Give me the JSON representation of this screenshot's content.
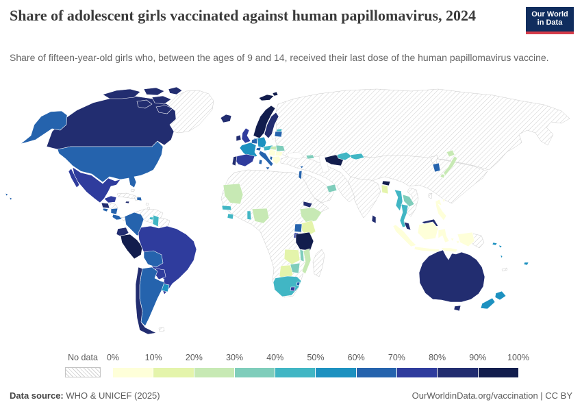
{
  "header": {
    "title": "Share of adolescent girls vaccinated against human papillomavirus, 2024",
    "subtitle": "Share of fifteen-year-old girls who, between the ages of 9 and 14, received their last dose of the human papillomavirus vaccine."
  },
  "logo": {
    "line1": "Our World",
    "line2": "in Data",
    "bg_color": "#102d5e",
    "accent_color": "#d63c4a"
  },
  "legend": {
    "no_data_label": "No data",
    "no_data_pattern_color": "#cfcfcf",
    "ticks": [
      "0%",
      "10%",
      "20%",
      "30%",
      "40%",
      "50%",
      "60%",
      "70%",
      "80%",
      "90%",
      "100%"
    ],
    "bins": [
      {
        "range": "0-10%",
        "color": "#feffd9"
      },
      {
        "range": "10-20%",
        "color": "#e4f4ab"
      },
      {
        "range": "20-30%",
        "color": "#c7e9b4"
      },
      {
        "range": "30-40%",
        "color": "#7fcdbb"
      },
      {
        "range": "40-50%",
        "color": "#41b6c4"
      },
      {
        "range": "50-60%",
        "color": "#1d91c0"
      },
      {
        "range": "60-70%",
        "color": "#2563ad"
      },
      {
        "range": "70-80%",
        "color": "#2f3c9d"
      },
      {
        "range": "80-90%",
        "color": "#222d70"
      },
      {
        "range": "90-100%",
        "color": "#121d4d"
      }
    ]
  },
  "footer": {
    "source_label": "Data source:",
    "source_text": " WHO & UNICEF (2025)",
    "link_text": "OurWorldinData.org/vaccination | CC BY"
  },
  "chart_data": {
    "type": "choropleth-map",
    "title": "Share of adolescent girls vaccinated against human papillomavirus, 2024",
    "unit": "%",
    "legend_bins": [
      "0-10",
      "10-20",
      "20-30",
      "30-40",
      "40-50",
      "50-60",
      "60-70",
      "70-80",
      "80-90",
      "90-100"
    ],
    "countries": [
      {
        "name": "Canada",
        "value": "80-90%",
        "bin": 8
      },
      {
        "name": "United States",
        "value": "60-70%",
        "bin": 6
      },
      {
        "name": "Mexico",
        "value": "70-80%",
        "bin": 7
      },
      {
        "name": "Guatemala",
        "value": "80-90%",
        "bin": 8
      },
      {
        "name": "El Salvador",
        "value": "60-70%",
        "bin": 6
      },
      {
        "name": "Nicaragua",
        "value": "60-70%",
        "bin": 6
      },
      {
        "name": "Costa Rica",
        "value": "60-70%",
        "bin": 6
      },
      {
        "name": "Jamaica",
        "value": "80-90%",
        "bin": 8
      },
      {
        "name": "Dominican Republic",
        "value": "60-70%",
        "bin": 6
      },
      {
        "name": "Trinidad and Tobago",
        "value": "40-50%",
        "bin": 4
      },
      {
        "name": "Colombia",
        "value": "60-70%",
        "bin": 6
      },
      {
        "name": "Ecuador",
        "value": "80-90%",
        "bin": 8
      },
      {
        "name": "Peru",
        "value": "90-100%",
        "bin": 9
      },
      {
        "name": "Brazil",
        "value": "70-80%",
        "bin": 7
      },
      {
        "name": "Bolivia",
        "value": "60-70%",
        "bin": 6
      },
      {
        "name": "Paraguay",
        "value": "70-80%",
        "bin": 7
      },
      {
        "name": "Uruguay",
        "value": "50-60%",
        "bin": 5
      },
      {
        "name": "Argentina",
        "value": "60-70%",
        "bin": 6
      },
      {
        "name": "Chile",
        "value": "80-90%",
        "bin": 8
      },
      {
        "name": "Guyana",
        "value": "40-50%",
        "bin": 4
      },
      {
        "name": "Iceland",
        "value": "80-90%",
        "bin": 8
      },
      {
        "name": "Norway",
        "value": "90-100%",
        "bin": 9
      },
      {
        "name": "Svalbard",
        "value": "90-100%",
        "bin": 9
      },
      {
        "name": "Sweden",
        "value": "80-90%",
        "bin": 8
      },
      {
        "name": "Denmark",
        "value": "60-70%",
        "bin": 6
      },
      {
        "name": "United Kingdom",
        "value": "70-80%",
        "bin": 7
      },
      {
        "name": "Ireland",
        "value": "80-90%",
        "bin": 8
      },
      {
        "name": "Netherlands",
        "value": "60-70%",
        "bin": 6
      },
      {
        "name": "Germany",
        "value": "50-60%",
        "bin": 5
      },
      {
        "name": "France",
        "value": "50-60%",
        "bin": 5
      },
      {
        "name": "Spain",
        "value": "70-80%",
        "bin": 7
      },
      {
        "name": "Portugal",
        "value": "80-90%",
        "bin": 8
      },
      {
        "name": "Italy",
        "value": "60-70%",
        "bin": 6
      },
      {
        "name": "Switzerland",
        "value": "60-70%",
        "bin": 6
      },
      {
        "name": "Austria",
        "value": "40-50%",
        "bin": 4
      },
      {
        "name": "Hungary",
        "value": "20-30%",
        "bin": 2
      },
      {
        "name": "Romania",
        "value": "30-40%",
        "bin": 3
      },
      {
        "name": "Serbia",
        "value": "0-10%",
        "bin": 0
      },
      {
        "name": "Bulgaria",
        "value": "0-10%",
        "bin": 0
      },
      {
        "name": "Greece",
        "value": "0-10%",
        "bin": 0
      },
      {
        "name": "Albania",
        "value": "60-70%",
        "bin": 6
      },
      {
        "name": "Estonia",
        "value": "40-50%",
        "bin": 4
      },
      {
        "name": "Latvia",
        "value": "60-70%",
        "bin": 6
      },
      {
        "name": "Georgia",
        "value": "30-40%",
        "bin": 3
      },
      {
        "name": "Turkmenistan",
        "value": "90-100%",
        "bin": 9
      },
      {
        "name": "Uzbekistan",
        "value": "40-50%",
        "bin": 4
      },
      {
        "name": "Kyrgyzstan",
        "value": "40-50%",
        "bin": 4
      },
      {
        "name": "Israel",
        "value": "60-70%",
        "bin": 6
      },
      {
        "name": "Cyprus",
        "value": "60-70%",
        "bin": 6
      },
      {
        "name": "United Arab Emirates",
        "value": "30-40%",
        "bin": 3
      },
      {
        "name": "Bhutan",
        "value": "90-100%",
        "bin": 9
      },
      {
        "name": "Bangladesh",
        "value": "10-20%",
        "bin": 1
      },
      {
        "name": "Sri Lanka",
        "value": "80-90%",
        "bin": 8
      },
      {
        "name": "Myanmar",
        "value": "40-50%",
        "bin": 4
      },
      {
        "name": "Laos",
        "value": "30-40%",
        "bin": 3
      },
      {
        "name": "Thailand",
        "value": "40-50%",
        "bin": 4
      },
      {
        "name": "Malaysia",
        "value": "80-90%",
        "bin": 8
      },
      {
        "name": "Indonesia",
        "value": "0-10%",
        "bin": 0
      },
      {
        "name": "Philippines",
        "value": "0-10%",
        "bin": 0
      },
      {
        "name": "Japan",
        "value": "20-30%",
        "bin": 2
      },
      {
        "name": "South Korea",
        "value": "60-70%",
        "bin": 6
      },
      {
        "name": "Mauritania",
        "value": "20-30%",
        "bin": 2
      },
      {
        "name": "Senegal",
        "value": "40-50%",
        "bin": 4
      },
      {
        "name": "Sierra Leone",
        "value": "40-50%",
        "bin": 4
      },
      {
        "name": "Benin",
        "value": "40-50%",
        "bin": 4
      },
      {
        "name": "Nigeria",
        "value": "20-30%",
        "bin": 2
      },
      {
        "name": "Eritrea",
        "value": "80-90%",
        "bin": 8
      },
      {
        "name": "Ethiopia",
        "value": "20-30%",
        "bin": 2
      },
      {
        "name": "Kenya",
        "value": "10-20%",
        "bin": 1
      },
      {
        "name": "Uganda",
        "value": "60-70%",
        "bin": 6
      },
      {
        "name": "Rwanda",
        "value": "70-80%",
        "bin": 7
      },
      {
        "name": "Tanzania",
        "value": "90-100%",
        "bin": 9
      },
      {
        "name": "Zambia",
        "value": "10-20%",
        "bin": 1
      },
      {
        "name": "Malawi",
        "value": "30-40%",
        "bin": 3
      },
      {
        "name": "Mozambique",
        "value": "20-30%",
        "bin": 2
      },
      {
        "name": "Zimbabwe",
        "value": "30-40%",
        "bin": 3
      },
      {
        "name": "Botswana",
        "value": "10-20%",
        "bin": 1
      },
      {
        "name": "South Africa",
        "value": "40-50%",
        "bin": 4
      },
      {
        "name": "Lesotho",
        "value": "70-80%",
        "bin": 7
      },
      {
        "name": "Eswatini",
        "value": "60-70%",
        "bin": 6
      },
      {
        "name": "Australia",
        "value": "80-90%",
        "bin": 8
      },
      {
        "name": "New Zealand",
        "value": "50-60%",
        "bin": 5
      },
      {
        "name": "Fiji",
        "value": "50-60%",
        "bin": 5
      },
      {
        "name": "Solomon Islands",
        "value": "50-60%",
        "bin": 5
      },
      {
        "name": "Vanuatu",
        "value": "50-60%",
        "bin": 5
      },
      {
        "name": "Hawaii (United States)",
        "value": "60-70%",
        "bin": 6
      }
    ],
    "no_data_countries": [
      "Russia",
      "China",
      "India",
      "Mongolia",
      "Kazakhstan",
      "Iran",
      "Turkey",
      "Saudi Arabia",
      "Egypt",
      "Algeria",
      "Libya",
      "Morocco",
      "Mali",
      "Niger",
      "Chad",
      "Sudan",
      "Somalia",
      "Democratic Republic of Congo",
      "Angola",
      "Namibia",
      "Madagascar",
      "Venezuela",
      "Suriname",
      "Cuba",
      "Haiti",
      "Honduras",
      "Panama",
      "Greenland",
      "Finland",
      "Poland",
      "Vietnam",
      "Cambodia",
      "North Korea",
      "Pakistan",
      "Afghanistan",
      "Papua New Guinea",
      "Taiwan",
      "New Caledonia",
      "Falkland Islands"
    ]
  }
}
